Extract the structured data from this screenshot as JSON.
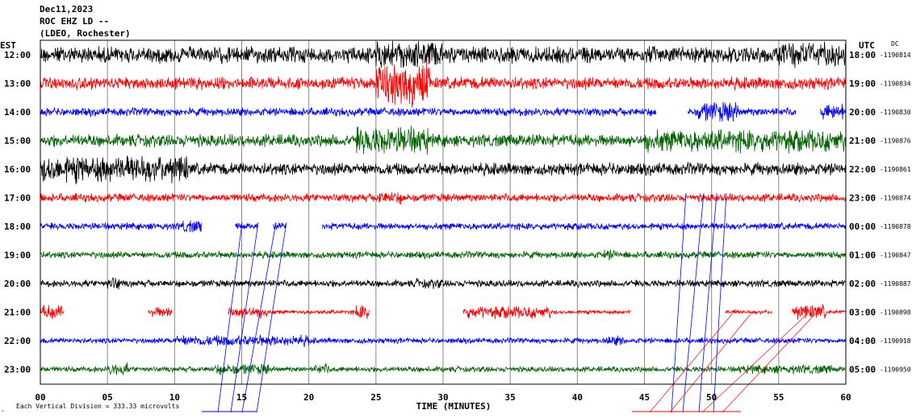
{
  "header": {
    "line1": "Dec11,2023",
    "line2": "ROC EHZ LD --",
    "line3": "(LDEO, Rochester)"
  },
  "left_axis_label": "EST",
  "right_axis_label": "UTC",
  "dc_label": "DC",
  "footer": {
    "scale_text": "Each Vertical Division =  333.33 microvolts",
    "corner_mark": "‸"
  },
  "chart_data": {
    "type": "line",
    "subtype": "helicorder",
    "xlabel": "TIME (MINUTES)",
    "xlim": [
      0,
      60
    ],
    "x_ticks": [
      "00",
      "05",
      "10",
      "15",
      "20",
      "25",
      "30",
      "35",
      "40",
      "45",
      "50",
      "55",
      "60"
    ],
    "grid": true,
    "vertical_division_microvolts": 333.33,
    "colors": {
      "black": "#000000",
      "red": "#ff0000",
      "blue": "#0000ff",
      "green": "#006400"
    },
    "rows": [
      {
        "est": "12:00",
        "utc": "18:00",
        "dc": "-1190814",
        "color": "black",
        "amp": 12,
        "gaps": [],
        "bursts": [
          [
            25,
            30,
            1.6
          ],
          [
            55,
            60,
            1.5
          ]
        ]
      },
      {
        "est": "13:00",
        "utc": "19:00",
        "dc": "-1190834",
        "color": "red",
        "amp": 9,
        "gaps": [],
        "bursts": [
          [
            25,
            29,
            3.5
          ]
        ]
      },
      {
        "est": "14:00",
        "utc": "20:00",
        "dc": "-1190830",
        "color": "blue",
        "amp": 6,
        "gaps": [
          [
            45.9,
            48.2
          ],
          [
            56.3,
            58.1
          ]
        ],
        "bursts": [
          [
            49,
            52,
            2.5
          ],
          [
            58.2,
            59.8,
            2.0
          ]
        ]
      },
      {
        "est": "15:00",
        "utc": "21:00",
        "dc": "-1190876",
        "color": "green",
        "amp": 9,
        "gaps": [],
        "bursts": [
          [
            23.5,
            29,
            2.2
          ],
          [
            45,
            60,
            1.8
          ]
        ]
      },
      {
        "est": "16:00",
        "utc": "22:00",
        "dc": "-1190861",
        "color": "black",
        "amp": 9,
        "gaps": [],
        "bursts": [
          [
            0,
            11,
            2.2
          ]
        ]
      },
      {
        "est": "17:00",
        "utc": "23:00",
        "dc": "-1190874",
        "color": "red",
        "amp": 6,
        "gaps": [],
        "bursts": [
          [
            25,
            27,
            1.6
          ]
        ]
      },
      {
        "est": "18:00",
        "utc": "00:00",
        "dc": "-1190878",
        "color": "blue",
        "amp": 5,
        "gaps": [
          [
            12,
            14.5
          ],
          [
            16.2,
            17.3
          ],
          [
            18.3,
            21
          ]
        ],
        "bursts": [
          [
            10.5,
            12,
            1.8
          ]
        ]
      },
      {
        "est": "19:00",
        "utc": "01:00",
        "dc": "-1190847",
        "color": "green",
        "amp": 5,
        "gaps": [],
        "bursts": [
          [
            42,
            43,
            1.6
          ]
        ]
      },
      {
        "est": "20:00",
        "utc": "02:00",
        "dc": "-1190887",
        "color": "black",
        "amp": 5,
        "gaps": [],
        "bursts": [
          [
            5,
            6,
            2.0
          ],
          [
            28,
            30,
            1.4
          ]
        ]
      },
      {
        "est": "21:00",
        "utc": "03:00",
        "dc": "-1190898",
        "color": "red",
        "amp": 3,
        "gaps": [
          [
            1.8,
            8
          ],
          [
            9.8,
            14
          ],
          [
            24.5,
            31.5
          ],
          [
            44,
            51
          ],
          [
            54.5,
            56
          ]
        ],
        "bursts": [
          [
            0,
            1.6,
            3.5
          ],
          [
            8,
            9.8,
            2.5
          ],
          [
            14,
            17,
            3.0
          ],
          [
            23.5,
            24.5,
            3.5
          ],
          [
            31.5,
            38,
            3.0
          ],
          [
            56,
            58.5,
            3.5
          ]
        ]
      },
      {
        "est": "22:00",
        "utc": "04:00",
        "dc": "-1190918",
        "color": "blue",
        "amp": 4,
        "gaps": [],
        "bursts": [
          [
            10,
            20,
            2.0
          ],
          [
            42,
            43.5,
            1.8
          ]
        ]
      },
      {
        "est": "23:00",
        "utc": "05:00",
        "dc": "-1190950",
        "color": "green",
        "amp": 4,
        "gaps": [],
        "bursts": [
          [
            5,
            6.5,
            2.3
          ],
          [
            13,
            17,
            2.0
          ],
          [
            20.5,
            21.5,
            2.0
          ],
          [
            52,
            59,
            1.6
          ]
        ]
      }
    ]
  }
}
